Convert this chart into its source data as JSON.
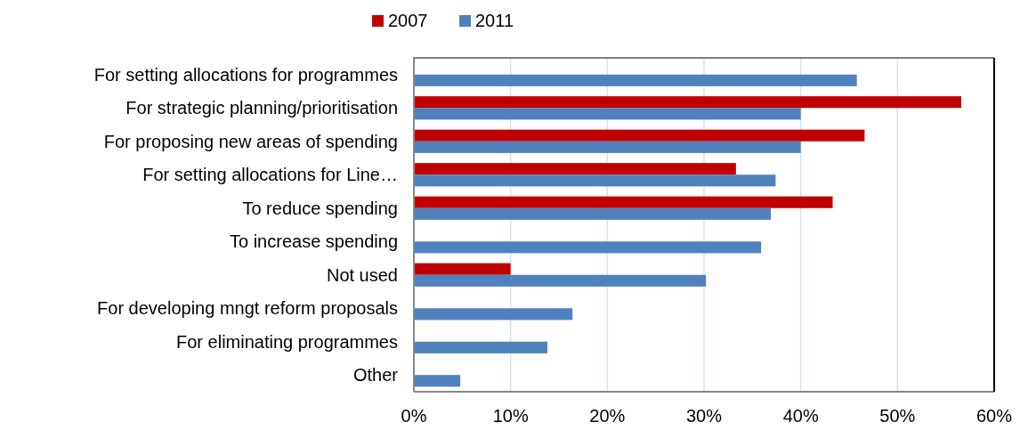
{
  "chart_data": {
    "type": "bar",
    "orientation": "horizontal",
    "categories": [
      "For setting allocations for programmes",
      "For strategic planning/prioritisation",
      "For proposing new areas of spending",
      "For setting allocations for Line…",
      "To reduce spending",
      "To increase spending",
      "Not used",
      "For developing mngt reform proposals",
      "For eliminating programmes",
      "Other"
    ],
    "series": [
      {
        "name": "2007",
        "color": "#c00000",
        "values": [
          null,
          56.6,
          46.6,
          33.3,
          43.3,
          null,
          10.0,
          null,
          null,
          null
        ]
      },
      {
        "name": "2011",
        "color": "#4f81bd",
        "values": [
          45.8,
          40.0,
          40.0,
          37.4,
          36.9,
          35.9,
          30.2,
          16.4,
          13.8,
          4.8
        ]
      }
    ],
    "xlim": [
      0,
      60
    ],
    "xticks": [
      {
        "value": 0,
        "label": "0%"
      },
      {
        "value": 10,
        "label": "10%"
      },
      {
        "value": 20,
        "label": "20%"
      },
      {
        "value": 30,
        "label": "30%"
      },
      {
        "value": 40,
        "label": "40%"
      },
      {
        "value": 50,
        "label": "50%"
      },
      {
        "value": 60,
        "label": "60%"
      }
    ],
    "grid": "x",
    "legend": "top"
  }
}
